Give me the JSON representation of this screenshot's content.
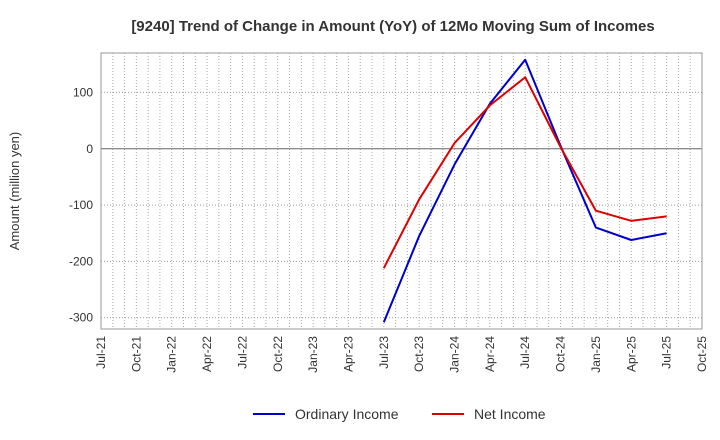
{
  "chart_data": {
    "type": "line",
    "title": "[9240]  Trend of Change in Amount (YoY) of 12Mo Moving Sum of Incomes",
    "ylabel": "Amount (million yen)",
    "xlabel": "",
    "ylim": [
      -320,
      170
    ],
    "yticks": [
      100,
      0,
      -100,
      -200,
      -300
    ],
    "grid": true,
    "legend_position": "bottom-center",
    "categories": [
      "Jul-21",
      "Oct-21",
      "Jan-22",
      "Apr-22",
      "Jul-22",
      "Oct-22",
      "Jan-23",
      "Apr-23",
      "Jul-23",
      "Oct-23",
      "Jan-24",
      "Apr-24",
      "Jul-24",
      "Oct-24",
      "Jan-25",
      "Apr-25",
      "Jul-25",
      "Oct-25"
    ],
    "series": [
      {
        "name": "Ordinary Income",
        "color": "#0000cc",
        "values": [
          null,
          null,
          null,
          null,
          null,
          null,
          null,
          null,
          -308,
          -155,
          -28,
          80,
          158,
          5,
          -140,
          -162,
          -150,
          null
        ]
      },
      {
        "name": "Net Income",
        "color": "#dd0000",
        "values": [
          null,
          null,
          null,
          null,
          null,
          null,
          null,
          null,
          -212,
          -90,
          10,
          77,
          127,
          3,
          -110,
          -128,
          -120,
          null
        ]
      }
    ]
  }
}
